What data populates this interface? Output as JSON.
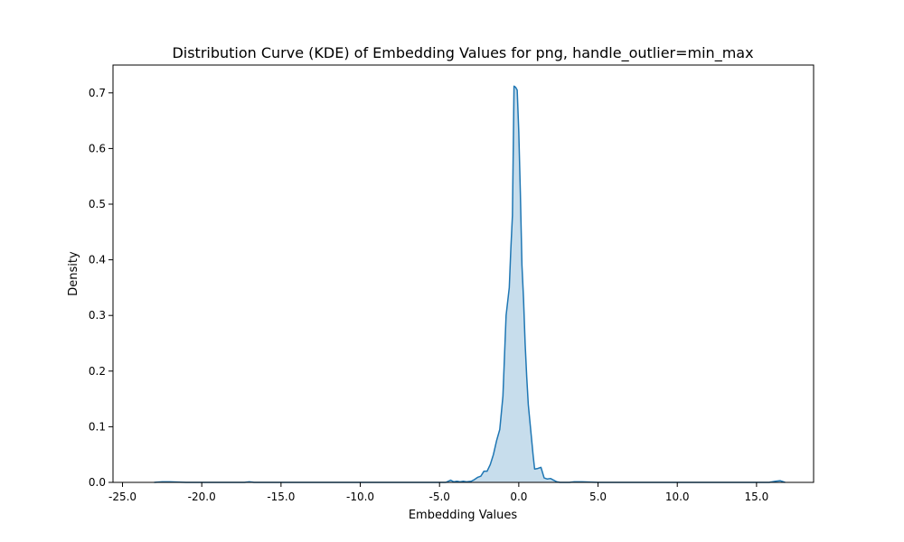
{
  "chart_data": {
    "type": "area",
    "title": "Distribution Curve (KDE) of Embedding Values for png, handle_outlier=min_max",
    "xlabel": "Embedding Values",
    "ylabel": "Density",
    "xlim": [
      -25.6,
      18.6
    ],
    "ylim": [
      0,
      0.75
    ],
    "xticks": [
      -25,
      -20,
      -15,
      -10,
      -5,
      0,
      5,
      10,
      15
    ],
    "xtick_labels": [
      "-25.0",
      "-20.0",
      "-15.0",
      "-10.0",
      "-5.0",
      "0.0",
      "5.0",
      "10.0",
      "15.0"
    ],
    "yticks": [
      0,
      0.1,
      0.2,
      0.3,
      0.4,
      0.5,
      0.6,
      0.7
    ],
    "ytick_labels": [
      "0.0",
      "0.1",
      "0.2",
      "0.3",
      "0.4",
      "0.5",
      "0.6",
      "0.7"
    ],
    "grid": false,
    "line_color": "#1f77b4",
    "fill_color": "#1f77b4",
    "fill_opacity": 0.25,
    "series": [
      {
        "x": [
          -23.0,
          -22.5,
          -22.0,
          -21.0,
          -20.0,
          -19.0,
          -18.0,
          -17.3,
          -17.0,
          -16.7,
          -16.0,
          -15.0,
          -14.0,
          -13.0,
          -12.0,
          -11.0,
          -10.0,
          -9.0,
          -8.0,
          -7.0,
          -6.0,
          -5.0,
          -4.6,
          -4.3,
          -4.1,
          -3.9,
          -3.7,
          -3.5,
          -3.3,
          -3.0,
          -2.8,
          -2.6,
          -2.4,
          -2.2,
          -2.0,
          -1.8,
          -1.6,
          -1.4,
          -1.2,
          -1.0,
          -0.8,
          -0.6,
          -0.5,
          -0.4,
          -0.3,
          -0.2,
          -0.1,
          0.0,
          0.1,
          0.2,
          0.3,
          0.4,
          0.5,
          0.6,
          0.7,
          0.8,
          0.9,
          1.0,
          1.2,
          1.4,
          1.6,
          1.8,
          2.0,
          2.2,
          2.4,
          2.6,
          2.8,
          3.0,
          3.2,
          3.5,
          4.0,
          5.0,
          5.5,
          5.9,
          6.3,
          7.0,
          8.0,
          9.0,
          10.0,
          11.0,
          12.0,
          13.0,
          14.0,
          15.0,
          15.8,
          16.2,
          16.5,
          16.8
        ],
        "y": [
          0.0,
          0.001,
          0.001,
          0.0,
          0.0,
          0.0,
          0.0,
          0.0,
          0.001,
          0.0,
          0.0,
          0.0,
          0.0,
          0.0,
          0.0,
          0.0,
          0.0,
          0.0,
          0.0,
          0.0,
          0.0,
          0.0,
          0.0,
          0.004,
          0.001,
          0.002,
          0.001,
          0.002,
          0.001,
          0.002,
          0.005,
          0.009,
          0.011,
          0.02,
          0.02,
          0.032,
          0.05,
          0.075,
          0.095,
          0.155,
          0.3,
          0.35,
          0.42,
          0.48,
          0.712,
          0.71,
          0.705,
          0.63,
          0.52,
          0.39,
          0.33,
          0.25,
          0.19,
          0.14,
          0.11,
          0.08,
          0.05,
          0.024,
          0.025,
          0.027,
          0.008,
          0.006,
          0.007,
          0.004,
          0.001,
          0.0,
          0.0,
          0.0,
          0.0,
          0.001,
          0.001,
          0.0,
          0.0,
          0.0,
          0.0,
          0.0,
          0.0,
          0.0,
          0.0,
          0.0,
          0.0,
          0.0,
          0.0,
          0.0,
          0.0,
          0.002,
          0.003,
          0.0
        ]
      }
    ]
  }
}
